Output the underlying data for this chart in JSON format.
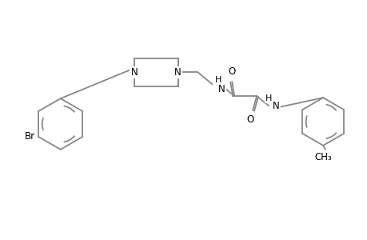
{
  "bg_color": "#ffffff",
  "line_color": "#000000",
  "gray_color": "#888888",
  "line_width": 1.3,
  "font_size": 8.5,
  "fig_width": 4.6,
  "fig_height": 3.0,
  "dpi": 100,
  "xlim": [
    0,
    46
  ],
  "ylim": [
    0,
    30
  ]
}
